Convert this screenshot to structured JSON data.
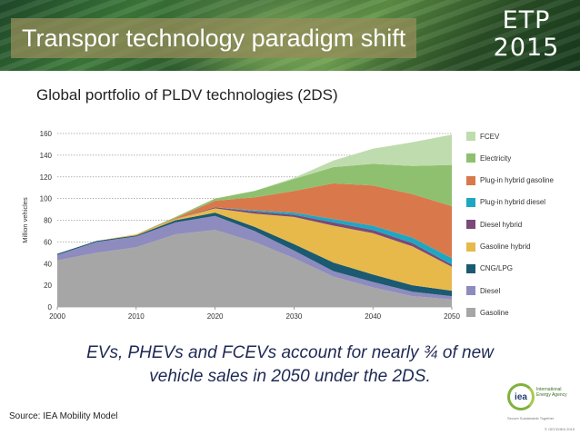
{
  "slide": {
    "title": "Transpor technology paradigm shift",
    "brand_line1": "ETP",
    "brand_line2": "2015",
    "subtitle": "Global portfolio of PLDV technologies (2DS)",
    "note_line1": "EVs, PHEVs and FCEVs account for nearly ¾ of new",
    "note_line2": "vehicle sales in 2050 under the 2DS.",
    "source": "Source: IEA Mobility Model",
    "iea_mark": "iea",
    "iea_name": "International Energy Agency",
    "iea_tagline": "Secure  Sustainable  Together",
    "copyright": "© OECD/IEA 2015"
  },
  "chart_data": {
    "type": "area",
    "stacked": true,
    "ylabel": "Million vehicles",
    "xlabel": "",
    "xlim": [
      2000,
      2050
    ],
    "ylim": [
      0,
      160
    ],
    "x_ticks": [
      2000,
      2010,
      2020,
      2030,
      2040,
      2050
    ],
    "y_ticks": [
      0,
      20,
      40,
      60,
      80,
      100,
      120,
      140,
      160
    ],
    "grid": "horizontal dotted",
    "legend_position": "right",
    "x": [
      2000,
      2005,
      2010,
      2015,
      2020,
      2025,
      2030,
      2035,
      2040,
      2045,
      2050
    ],
    "series": [
      {
        "name": "Gasoline",
        "color": "#a6a6a6",
        "values": [
          43,
          50,
          55,
          67,
          71,
          60,
          45,
          28,
          18,
          10,
          7
        ]
      },
      {
        "name": "Diesel",
        "color": "#8e8bbf",
        "values": [
          5,
          10,
          10,
          11,
          13,
          10,
          7,
          5,
          5,
          4,
          3
        ]
      },
      {
        "name": "CNG/LPG",
        "color": "#1b5a70",
        "values": [
          1,
          1,
          1,
          2,
          3,
          4,
          6,
          8,
          7,
          6,
          5
        ]
      },
      {
        "name": "Gasoline hybrid",
        "color": "#e7b94b",
        "values": [
          0,
          0,
          1,
          1,
          4,
          12,
          25,
          34,
          38,
          36,
          22
        ]
      },
      {
        "name": "Diesel hybrid",
        "color": "#7a4a78",
        "values": [
          0,
          0,
          0,
          0,
          1,
          2,
          2,
          3,
          3,
          3,
          2
        ]
      },
      {
        "name": "Plug-in hybrid diesel",
        "color": "#1ea7c3",
        "values": [
          0,
          0,
          0,
          0,
          0,
          1,
          2,
          3,
          4,
          5,
          6
        ]
      },
      {
        "name": "Plug-in hybrid gasoline",
        "color": "#d9794b",
        "values": [
          0,
          0,
          0,
          1,
          6,
          12,
          20,
          33,
          37,
          40,
          48
        ]
      },
      {
        "name": "Electricity",
        "color": "#8fc06f",
        "values": [
          0,
          0,
          0,
          1,
          2,
          6,
          11,
          15,
          20,
          26,
          38
        ]
      },
      {
        "name": "FCEV",
        "color": "#bfdcae",
        "values": [
          0,
          0,
          0,
          0,
          0,
          0,
          1,
          6,
          14,
          22,
          28
        ]
      }
    ]
  }
}
